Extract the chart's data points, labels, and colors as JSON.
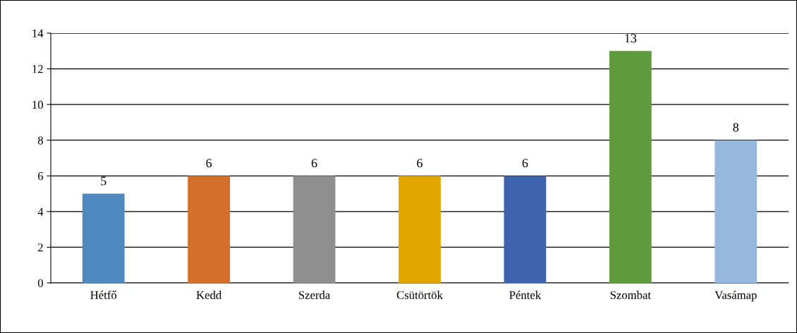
{
  "chart_data": {
    "type": "bar",
    "categories": [
      "Hétfő",
      "Kedd",
      "Szerda",
      "Csütörtök",
      "Péntek",
      "Szombat",
      "Vasámap"
    ],
    "values": [
      5,
      6,
      6,
      6,
      6,
      13,
      8
    ],
    "colors": [
      "#4f89c0",
      "#d46e2c",
      "#8f8f8f",
      "#e3a800",
      "#3d64ad",
      "#5f9a3e",
      "#96b8df"
    ],
    "ylim": [
      0,
      14
    ],
    "yticks": [
      0,
      2,
      4,
      6,
      8,
      10,
      12,
      14
    ],
    "grid": "y",
    "data_labels": true,
    "legend": false
  }
}
